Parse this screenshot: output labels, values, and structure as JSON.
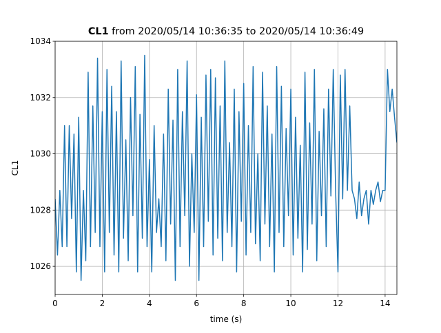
{
  "chart_data": {
    "type": "line",
    "title": {
      "name": "CL1",
      "text": "from 2020/05/14 10:36:35 to 2020/05/14 10:36:49"
    },
    "xlabel": "time (s)",
    "ylabel": "CL1",
    "color": "#1f77b4",
    "grid": true,
    "xlim": [
      0,
      14.5
    ],
    "ylim": [
      1025,
      1034
    ],
    "xticks": [
      0,
      2,
      4,
      6,
      8,
      10,
      12,
      14
    ],
    "yticks": [
      1026,
      1028,
      1030,
      1032,
      1034
    ],
    "x": [
      0,
      0.1,
      0.2,
      0.3,
      0.4,
      0.5,
      0.6,
      0.7,
      0.8,
      0.9,
      1,
      1.1,
      1.2,
      1.3,
      1.4,
      1.5,
      1.6,
      1.7,
      1.8,
      1.9,
      2,
      2.1,
      2.2,
      2.3,
      2.4,
      2.5,
      2.6,
      2.7,
      2.8,
      2.9,
      3,
      3.1,
      3.2,
      3.3,
      3.4,
      3.5,
      3.6,
      3.7,
      3.8,
      3.9,
      4,
      4.1,
      4.2,
      4.3,
      4.4,
      4.5,
      4.6,
      4.7,
      4.8,
      4.9,
      5,
      5.1,
      5.2,
      5.3,
      5.4,
      5.5,
      5.6,
      5.7,
      5.8,
      5.9,
      6,
      6.1,
      6.2,
      6.3,
      6.4,
      6.5,
      6.6,
      6.7,
      6.8,
      6.9,
      7,
      7.1,
      7.2,
      7.3,
      7.4,
      7.5,
      7.6,
      7.7,
      7.8,
      7.9,
      8,
      8.1,
      8.2,
      8.3,
      8.4,
      8.5,
      8.6,
      8.7,
      8.8,
      8.9,
      9,
      9.1,
      9.2,
      9.3,
      9.4,
      9.5,
      9.6,
      9.7,
      9.8,
      9.9,
      10,
      10.1,
      10.2,
      10.3,
      10.4,
      10.5,
      10.6,
      10.7,
      10.8,
      10.9,
      11,
      11.1,
      11.2,
      11.3,
      11.4,
      11.5,
      11.6,
      11.7,
      11.8,
      11.9,
      12,
      12.1,
      12.2,
      12.3,
      12.4,
      12.5,
      12.6,
      12.7,
      12.8,
      12.9,
      13,
      13.1,
      13.2,
      13.3,
      13.4,
      13.5,
      13.6,
      13.7,
      13.8,
      13.9,
      14,
      14.1,
      14.2,
      14.3,
      14.4,
      14.5
    ],
    "values": [
      1028.4,
      1026.4,
      1028.7,
      1026.7,
      1031,
      1026.7,
      1031,
      1027.7,
      1030.7,
      1025.8,
      1031.3,
      1025.5,
      1028.7,
      1026.2,
      1032.9,
      1026.7,
      1031.7,
      1027.2,
      1033.4,
      1026.7,
      1031.5,
      1025.8,
      1033,
      1027.2,
      1032.4,
      1026.4,
      1031.5,
      1025.8,
      1033.3,
      1027,
      1030.5,
      1026.2,
      1032,
      1027.8,
      1033.1,
      1025.8,
      1031.4,
      1027,
      1033.5,
      1026.7,
      1029.8,
      1025.8,
      1031,
      1027.2,
      1028.4,
      1026.7,
      1030.7,
      1026.2,
      1032.3,
      1027.5,
      1031.2,
      1025.5,
      1033,
      1026.7,
      1031.5,
      1027.8,
      1033.3,
      1026,
      1030,
      1027.2,
      1032.1,
      1025.5,
      1031.3,
      1026.7,
      1032.8,
      1027.6,
      1033,
      1026.4,
      1032.7,
      1027,
      1031.7,
      1026.2,
      1033.3,
      1027.2,
      1030.4,
      1026.7,
      1032.3,
      1025.8,
      1031.5,
      1027.6,
      1032.5,
      1026.4,
      1031,
      1027.2,
      1033.1,
      1026.8,
      1030,
      1026.2,
      1032.9,
      1027.5,
      1031.7,
      1026.7,
      1030.7,
      1025.8,
      1033.1,
      1027.2,
      1032.4,
      1026.7,
      1030.9,
      1027.8,
      1032.3,
      1026.4,
      1031.3,
      1027,
      1030.3,
      1025.8,
      1032.9,
      1026.6,
      1031.1,
      1027.5,
      1033,
      1026.2,
      1030.8,
      1027.8,
      1031.6,
      1026.7,
      1032.3,
      1028.5,
      1033,
      1028.7,
      1025.8,
      1032.8,
      1028.4,
      1033,
      1028.7,
      1031.7,
      1028.7,
      1028.4,
      1027.7,
      1029,
      1027.8,
      1028.4,
      1028.7,
      1027.5,
      1028.7,
      1028.2,
      1028.7,
      1029,
      1028.3,
      1028.7,
      1028.7,
      1033,
      1031.5,
      1032.3,
      1031.3,
      1030.4
    ]
  }
}
